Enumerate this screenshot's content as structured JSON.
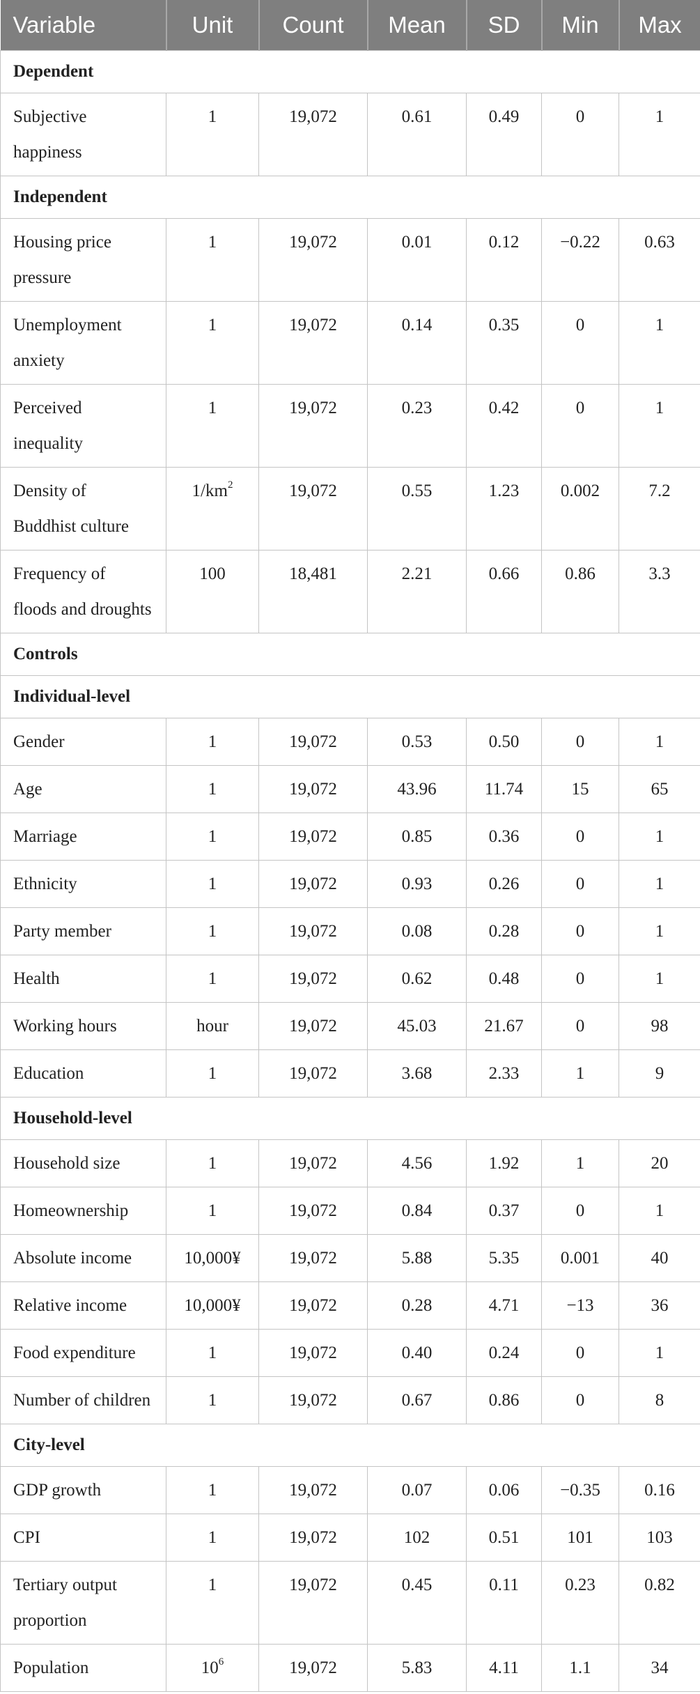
{
  "headers": {
    "variable": "Variable",
    "unit": "Unit",
    "count": "Count",
    "mean": "Mean",
    "sd": "SD",
    "min": "Min",
    "max": "Max"
  },
  "sections": {
    "dependent": "Dependent",
    "independent": "Independent",
    "controls": "Controls",
    "individual": "Individual-level",
    "household": "Household-level",
    "city": "City-level"
  },
  "rows": [
    {
      "variable": "Subjective happiness",
      "unit": "1",
      "count": "19,072",
      "mean": "0.61",
      "sd": "0.49",
      "min": "0",
      "max": "1"
    },
    {
      "variable": "Housing price pressure",
      "unit": "1",
      "count": "19,072",
      "mean": "0.01",
      "sd": "0.12",
      "min": "−0.22",
      "max": "0.63"
    },
    {
      "variable": "Unemployment anxiety",
      "unit": "1",
      "count": "19,072",
      "mean": "0.14",
      "sd": "0.35",
      "min": "0",
      "max": "1"
    },
    {
      "variable": "Perceived inequality",
      "unit": "1",
      "count": "19,072",
      "mean": "0.23",
      "sd": "0.42",
      "min": "0",
      "max": "1"
    },
    {
      "variable": "Density of Buddhist culture",
      "unit": "1/km",
      "unit_sup": "2",
      "count": "19,072",
      "mean": "0.55",
      "sd": "1.23",
      "min": "0.002",
      "max": "7.2"
    },
    {
      "variable": "Frequency of floods and droughts",
      "unit": "100",
      "count": "18,481",
      "mean": "2.21",
      "sd": "0.66",
      "min": "0.86",
      "max": "3.3"
    },
    {
      "variable": "Gender",
      "unit": "1",
      "count": "19,072",
      "mean": "0.53",
      "sd": "0.50",
      "min": "0",
      "max": "1"
    },
    {
      "variable": "Age",
      "unit": "1",
      "count": "19,072",
      "mean": "43.96",
      "sd": "11.74",
      "min": "15",
      "max": "65"
    },
    {
      "variable": "Marriage",
      "unit": "1",
      "count": "19,072",
      "mean": "0.85",
      "sd": "0.36",
      "min": "0",
      "max": "1"
    },
    {
      "variable": "Ethnicity",
      "unit": "1",
      "count": "19,072",
      "mean": "0.93",
      "sd": "0.26",
      "min": "0",
      "max": "1"
    },
    {
      "variable": "Party member",
      "unit": "1",
      "count": "19,072",
      "mean": "0.08",
      "sd": "0.28",
      "min": "0",
      "max": "1"
    },
    {
      "variable": "Health",
      "unit": "1",
      "count": "19,072",
      "mean": "0.62",
      "sd": "0.48",
      "min": "0",
      "max": "1"
    },
    {
      "variable": "Working hours",
      "unit": "hour",
      "count": "19,072",
      "mean": "45.03",
      "sd": "21.67",
      "min": "0",
      "max": "98"
    },
    {
      "variable": "Education",
      "unit": "1",
      "count": "19,072",
      "mean": "3.68",
      "sd": "2.33",
      "min": "1",
      "max": "9"
    },
    {
      "variable": "Household size",
      "unit": "1",
      "count": "19,072",
      "mean": "4.56",
      "sd": "1.92",
      "min": "1",
      "max": "20"
    },
    {
      "variable": "Homeownership",
      "unit": "1",
      "count": "19,072",
      "mean": "0.84",
      "sd": "0.37",
      "min": "0",
      "max": "1"
    },
    {
      "variable": "Absolute income",
      "unit": "10,000¥",
      "count": "19,072",
      "mean": "5.88",
      "sd": "5.35",
      "min": "0.001",
      "max": "40"
    },
    {
      "variable": "Relative income",
      "unit": "10,000¥",
      "count": "19,072",
      "mean": "0.28",
      "sd": "4.71",
      "min": "−13",
      "max": "36"
    },
    {
      "variable": "Food expenditure",
      "unit": "1",
      "count": "19,072",
      "mean": "0.40",
      "sd": "0.24",
      "min": "0",
      "max": "1"
    },
    {
      "variable": "Number of children",
      "unit": "1",
      "count": "19,072",
      "mean": "0.67",
      "sd": "0.86",
      "min": "0",
      "max": "8"
    },
    {
      "variable": "GDP growth",
      "unit": "1",
      "count": "19,072",
      "mean": "0.07",
      "sd": "0.06",
      "min": "−0.35",
      "max": "0.16"
    },
    {
      "variable": "CPI",
      "unit": "1",
      "count": "19,072",
      "mean": "102",
      "sd": "0.51",
      "min": "101",
      "max": "103"
    },
    {
      "variable": "Tertiary output proportion",
      "unit": "1",
      "count": "19,072",
      "mean": "0.45",
      "sd": "0.11",
      "min": "0.23",
      "max": "0.82"
    },
    {
      "variable": "Population",
      "unit": "10",
      "unit_sup": "6",
      "count": "19,072",
      "mean": "5.83",
      "sd": "4.11",
      "min": "1.1",
      "max": "34"
    }
  ]
}
